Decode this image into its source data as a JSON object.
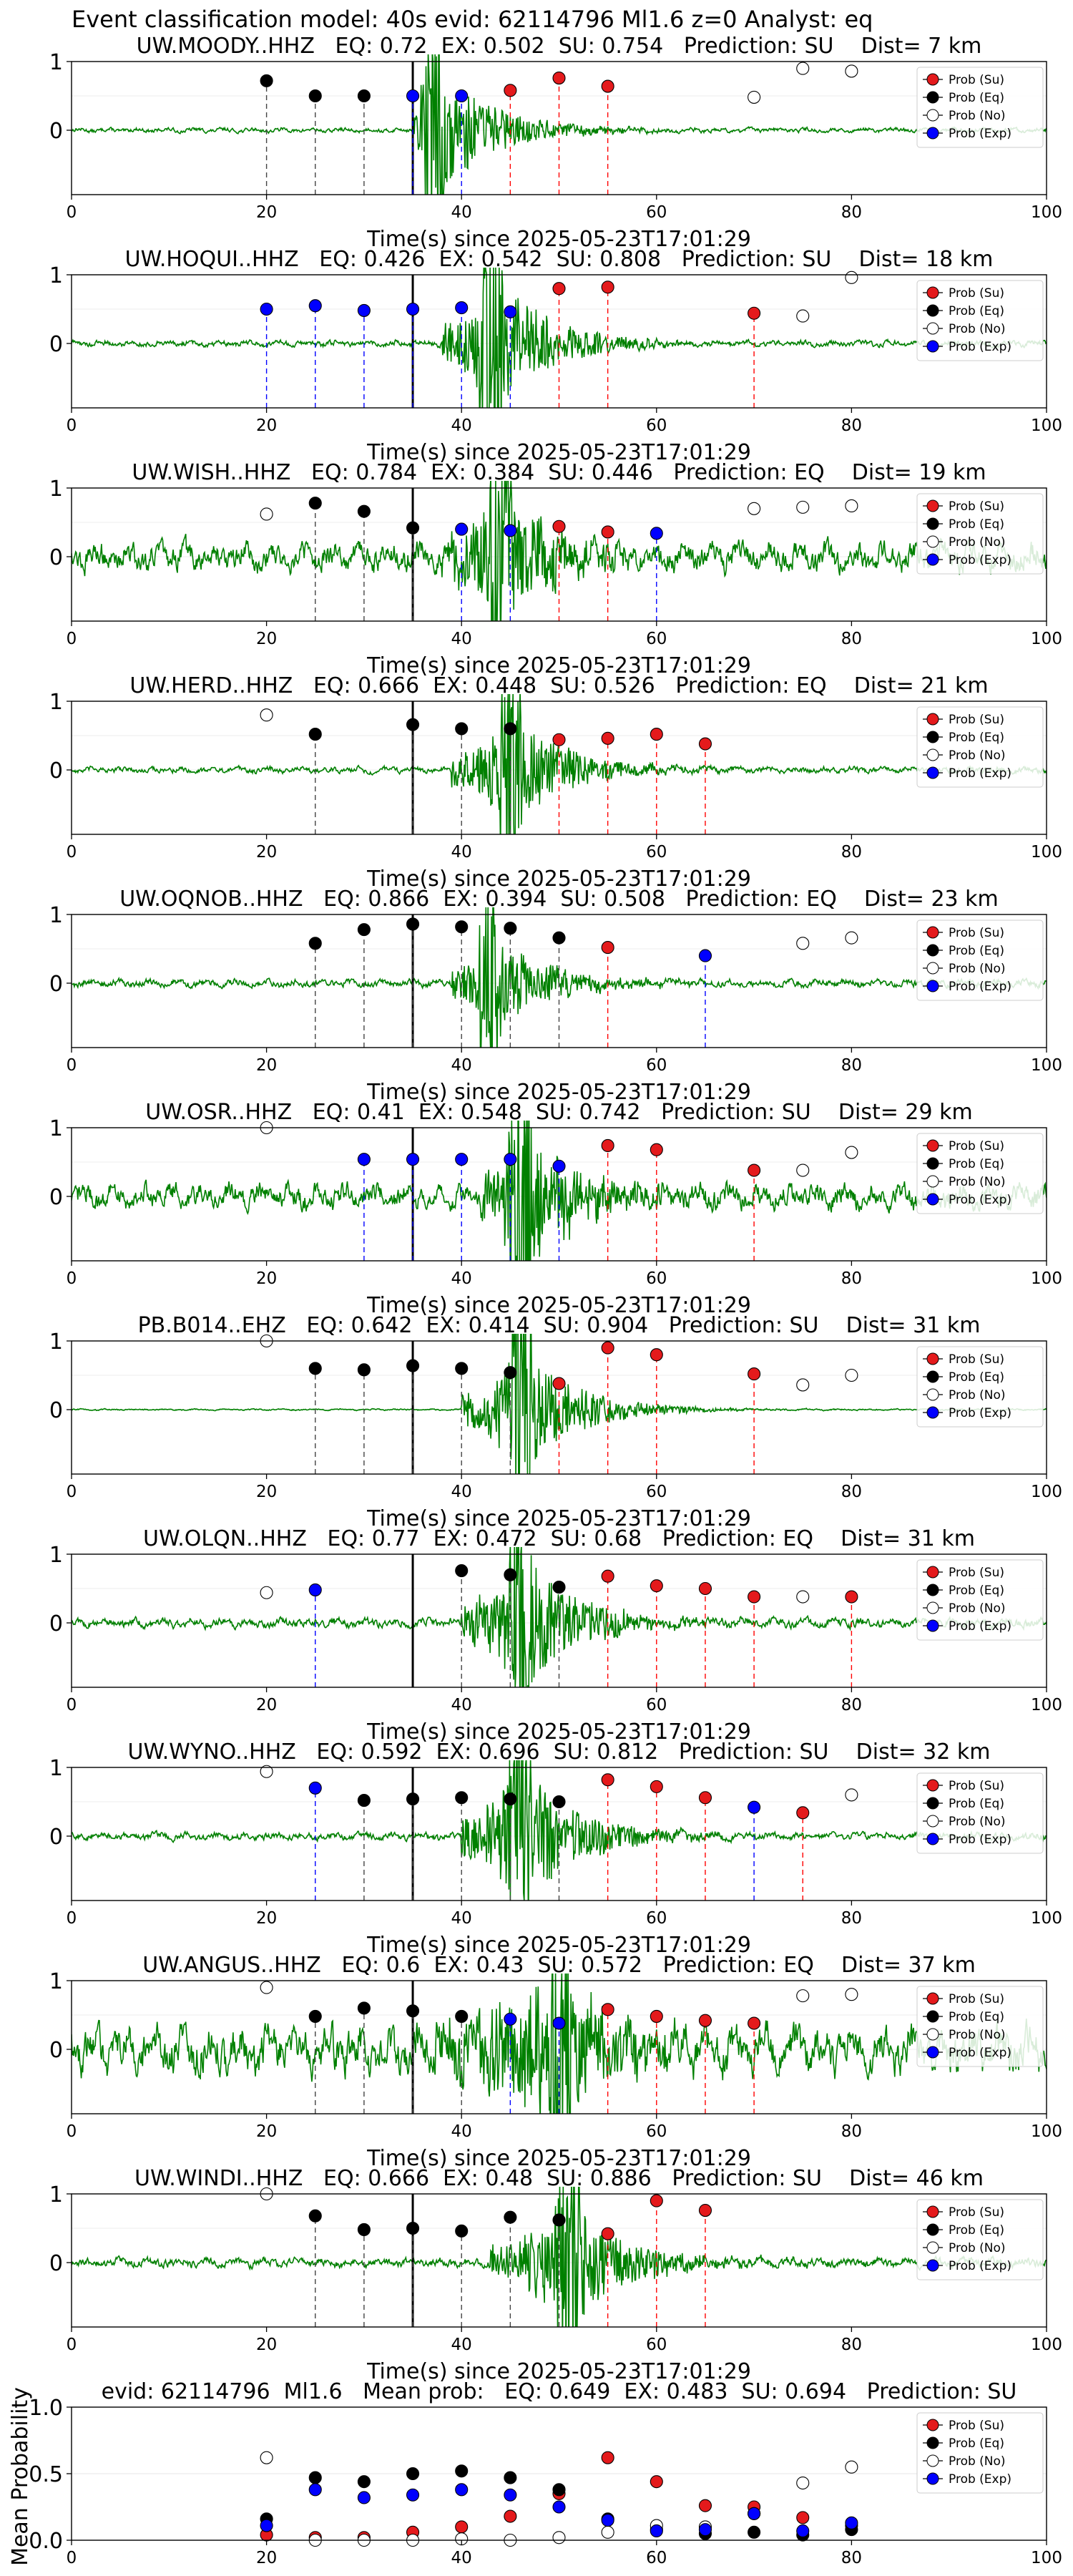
{
  "figure": {
    "suptitle": "Event classification model: 40s evid: 62114796 Ml1.6 z=0 Analyst: eq",
    "xlabel": "Time(s) since 2025-05-23T17:01:29",
    "mean_ylabel": "Mean Probability",
    "legend": [
      "Prob (Su)",
      "Prob (Eq)",
      "Prob (No)",
      "Prob (Exp)"
    ],
    "colors": {
      "su": "#e41a1c",
      "eq": "#000000",
      "no": "#ffffff",
      "exp": "#0000ff",
      "wave": "#008000",
      "su_line": "#ff0000",
      "exp_line": "#0000ff",
      "eq_line": "#444444"
    }
  },
  "chart_data": [
    {
      "type": "scatter",
      "title": "UW.MOODY..HHZ   EQ: 0.72  EX: 0.502  SU: 0.754   Prediction: SU    Dist= 7 km",
      "xlim": [
        0,
        100
      ],
      "xticks": [
        "0",
        "20",
        "40",
        "60",
        "80",
        "100"
      ],
      "yticks": [
        "1",
        "0"
      ],
      "p_arrival": 35,
      "wave_onset": 35,
      "wave_peak": 37,
      "wave_noise": 0.03,
      "wave_amp": 1.0,
      "points": [
        [
          20,
          0.72,
          "eq"
        ],
        [
          25,
          0.5,
          "eq"
        ],
        [
          30,
          0.5,
          "eq"
        ],
        [
          35,
          0.5,
          "exp"
        ],
        [
          40,
          0.5,
          "exp"
        ],
        [
          45,
          0.58,
          "su"
        ],
        [
          50,
          0.76,
          "su"
        ],
        [
          55,
          0.64,
          "su"
        ],
        [
          70,
          0.48,
          "no"
        ],
        [
          75,
          0.9,
          "no"
        ],
        [
          80,
          0.86,
          "no"
        ]
      ]
    },
    {
      "type": "scatter",
      "title": "UW.HOQUI..HHZ   EQ: 0.426  EX: 0.542  SU: 0.808   Prediction: SU    Dist= 18 km",
      "xlim": [
        0,
        100
      ],
      "xticks": [
        "0",
        "20",
        "40",
        "60",
        "80",
        "100"
      ],
      "yticks": [
        "1",
        "0"
      ],
      "p_arrival": 35,
      "wave_onset": 38,
      "wave_peak": 43,
      "wave_noise": 0.04,
      "wave_amp": 1.0,
      "points": [
        [
          20,
          0.5,
          "exp"
        ],
        [
          25,
          0.55,
          "exp"
        ],
        [
          30,
          0.48,
          "exp"
        ],
        [
          35,
          0.5,
          "exp"
        ],
        [
          40,
          0.52,
          "exp"
        ],
        [
          45,
          0.46,
          "exp"
        ],
        [
          50,
          0.8,
          "su"
        ],
        [
          55,
          0.82,
          "su"
        ],
        [
          70,
          0.44,
          "su"
        ],
        [
          75,
          0.4,
          "no"
        ],
        [
          80,
          0.96,
          "no"
        ]
      ]
    },
    {
      "type": "scatter",
      "title": "UW.WISH..HHZ   EQ: 0.784  EX: 0.384  SU: 0.446   Prediction: EQ    Dist= 19 km",
      "xlim": [
        0,
        100
      ],
      "xticks": [
        "0",
        "20",
        "40",
        "60",
        "80",
        "100"
      ],
      "yticks": [
        "1",
        "0"
      ],
      "p_arrival": 35,
      "wave_onset": 38,
      "wave_peak": 44,
      "wave_noise": 0.18,
      "wave_amp": 0.9,
      "points": [
        [
          20,
          0.62,
          "no"
        ],
        [
          25,
          0.78,
          "eq"
        ],
        [
          30,
          0.66,
          "eq"
        ],
        [
          35,
          0.42,
          "eq"
        ],
        [
          40,
          0.4,
          "exp"
        ],
        [
          45,
          0.38,
          "exp"
        ],
        [
          50,
          0.44,
          "su"
        ],
        [
          55,
          0.36,
          "su"
        ],
        [
          60,
          0.34,
          "exp"
        ],
        [
          70,
          0.7,
          "no"
        ],
        [
          75,
          0.72,
          "no"
        ],
        [
          80,
          0.74,
          "no"
        ]
      ]
    },
    {
      "type": "scatter",
      "title": "UW.HERD..HHZ   EQ: 0.666  EX: 0.448  SU: 0.526   Prediction: EQ    Dist= 21 km",
      "xlim": [
        0,
        100
      ],
      "xticks": [
        "0",
        "20",
        "40",
        "60",
        "80",
        "100"
      ],
      "yticks": [
        "1",
        "0"
      ],
      "p_arrival": 35,
      "wave_onset": 39,
      "wave_peak": 45,
      "wave_noise": 0.04,
      "wave_amp": 0.8,
      "points": [
        [
          20,
          0.8,
          "no"
        ],
        [
          25,
          0.52,
          "eq"
        ],
        [
          35,
          0.66,
          "eq"
        ],
        [
          40,
          0.6,
          "eq"
        ],
        [
          45,
          0.6,
          "eq"
        ],
        [
          50,
          0.44,
          "su"
        ],
        [
          55,
          0.46,
          "su"
        ],
        [
          60,
          0.52,
          "su"
        ],
        [
          65,
          0.38,
          "su"
        ]
      ]
    },
    {
      "type": "scatter",
      "title": "UW.OQNOB..HHZ   EQ: 0.866  EX: 0.394  SU: 0.508   Prediction: EQ    Dist= 23 km",
      "xlim": [
        0,
        100
      ],
      "xticks": [
        "0",
        "20",
        "40",
        "60",
        "80",
        "100"
      ],
      "yticks": [
        "1",
        "0"
      ],
      "p_arrival": 35,
      "wave_onset": 39,
      "wave_peak": 43,
      "wave_noise": 0.05,
      "wave_amp": 0.7,
      "points": [
        [
          25,
          0.58,
          "eq"
        ],
        [
          30,
          0.78,
          "eq"
        ],
        [
          35,
          0.86,
          "eq"
        ],
        [
          40,
          0.82,
          "eq"
        ],
        [
          45,
          0.8,
          "eq"
        ],
        [
          50,
          0.66,
          "eq"
        ],
        [
          55,
          0.52,
          "su"
        ],
        [
          65,
          0.4,
          "exp"
        ],
        [
          75,
          0.58,
          "no"
        ],
        [
          80,
          0.66,
          "no"
        ]
      ]
    },
    {
      "type": "scatter",
      "title": "UW.OSR..HHZ   EQ: 0.41  EX: 0.548  SU: 0.742   Prediction: SU    Dist= 29 km",
      "xlim": [
        0,
        100
      ],
      "xticks": [
        "0",
        "20",
        "40",
        "60",
        "80",
        "100"
      ],
      "yticks": [
        "1",
        "0"
      ],
      "p_arrival": 35,
      "wave_onset": 42,
      "wave_peak": 46,
      "wave_noise": 0.16,
      "wave_amp": 1.0,
      "points": [
        [
          20,
          1.0,
          "no"
        ],
        [
          30,
          0.54,
          "exp"
        ],
        [
          35,
          0.54,
          "exp"
        ],
        [
          40,
          0.54,
          "exp"
        ],
        [
          45,
          0.54,
          "exp"
        ],
        [
          50,
          0.44,
          "exp"
        ],
        [
          55,
          0.74,
          "su"
        ],
        [
          60,
          0.68,
          "su"
        ],
        [
          70,
          0.38,
          "su"
        ],
        [
          75,
          0.38,
          "no"
        ],
        [
          80,
          0.64,
          "no"
        ]
      ]
    },
    {
      "type": "scatter",
      "title": "PB.B014..EHZ   EQ: 0.642  EX: 0.414  SU: 0.904   Prediction: SU    Dist= 31 km",
      "xlim": [
        0,
        100
      ],
      "xticks": [
        "0",
        "20",
        "40",
        "60",
        "80",
        "100"
      ],
      "yticks": [
        "1",
        "0"
      ],
      "p_arrival": 35,
      "wave_onset": 40,
      "wave_peak": 46,
      "wave_noise": 0.01,
      "wave_amp": 0.9,
      "points": [
        [
          20,
          1.0,
          "no"
        ],
        [
          25,
          0.6,
          "eq"
        ],
        [
          30,
          0.58,
          "eq"
        ],
        [
          35,
          0.64,
          "eq"
        ],
        [
          40,
          0.6,
          "eq"
        ],
        [
          45,
          0.54,
          "eq"
        ],
        [
          50,
          0.38,
          "su"
        ],
        [
          55,
          0.9,
          "su"
        ],
        [
          60,
          0.8,
          "su"
        ],
        [
          70,
          0.52,
          "su"
        ],
        [
          75,
          0.36,
          "no"
        ],
        [
          80,
          0.5,
          "no"
        ]
      ]
    },
    {
      "type": "scatter",
      "title": "UW.OLQN..HHZ   EQ: 0.77  EX: 0.472  SU: 0.68   Prediction: EQ    Dist= 31 km",
      "xlim": [
        0,
        100
      ],
      "xticks": [
        "0",
        "20",
        "40",
        "60",
        "80",
        "100"
      ],
      "yticks": [
        "1",
        "0"
      ],
      "p_arrival": 35,
      "wave_onset": 40,
      "wave_peak": 46,
      "wave_noise": 0.06,
      "wave_amp": 1.0,
      "points": [
        [
          20,
          0.44,
          "no"
        ],
        [
          25,
          0.48,
          "exp"
        ],
        [
          40,
          0.76,
          "eq"
        ],
        [
          45,
          0.7,
          "eq"
        ],
        [
          50,
          0.52,
          "eq"
        ],
        [
          55,
          0.68,
          "su"
        ],
        [
          60,
          0.54,
          "su"
        ],
        [
          65,
          0.5,
          "su"
        ],
        [
          70,
          0.38,
          "su"
        ],
        [
          75,
          0.38,
          "no"
        ],
        [
          80,
          0.38,
          "su"
        ]
      ]
    },
    {
      "type": "scatter",
      "title": "UW.WYNO..HHZ   EQ: 0.592  EX: 0.696  SU: 0.812   Prediction: SU    Dist= 32 km",
      "xlim": [
        0,
        100
      ],
      "xticks": [
        "0",
        "20",
        "40",
        "60",
        "80",
        "100"
      ],
      "yticks": [
        "1",
        "0"
      ],
      "p_arrival": 35,
      "wave_onset": 40,
      "wave_peak": 46,
      "wave_noise": 0.05,
      "wave_amp": 1.0,
      "points": [
        [
          20,
          0.94,
          "no"
        ],
        [
          25,
          0.7,
          "exp"
        ],
        [
          30,
          0.52,
          "eq"
        ],
        [
          35,
          0.54,
          "eq"
        ],
        [
          40,
          0.56,
          "eq"
        ],
        [
          45,
          0.54,
          "eq"
        ],
        [
          50,
          0.5,
          "eq"
        ],
        [
          55,
          0.82,
          "su"
        ],
        [
          60,
          0.72,
          "su"
        ],
        [
          65,
          0.56,
          "su"
        ],
        [
          70,
          0.42,
          "exp"
        ],
        [
          75,
          0.34,
          "su"
        ],
        [
          80,
          0.6,
          "no"
        ]
      ]
    },
    {
      "type": "scatter",
      "title": "UW.ANGUS..HHZ   EQ: 0.6  EX: 0.43  SU: 0.572   Prediction: EQ    Dist= 37 km",
      "xlim": [
        0,
        100
      ],
      "xticks": [
        "0",
        "20",
        "40",
        "60",
        "80",
        "100"
      ],
      "yticks": [
        "1",
        "0"
      ],
      "p_arrival": 35,
      "wave_onset": 37,
      "wave_peak": 50,
      "wave_noise": 0.3,
      "wave_amp": 1.0,
      "points": [
        [
          20,
          0.9,
          "no"
        ],
        [
          25,
          0.48,
          "eq"
        ],
        [
          30,
          0.6,
          "eq"
        ],
        [
          35,
          0.56,
          "eq"
        ],
        [
          40,
          0.48,
          "eq"
        ],
        [
          45,
          0.44,
          "exp"
        ],
        [
          50,
          0.38,
          "exp"
        ],
        [
          55,
          0.58,
          "su"
        ],
        [
          60,
          0.48,
          "su"
        ],
        [
          65,
          0.42,
          "su"
        ],
        [
          70,
          0.38,
          "su"
        ],
        [
          75,
          0.78,
          "no"
        ],
        [
          80,
          0.8,
          "no"
        ]
      ]
    },
    {
      "type": "scatter",
      "title": "UW.WINDI..HHZ   EQ: 0.666  EX: 0.48  SU: 0.886   Prediction: SU    Dist= 46 km",
      "xlim": [
        0,
        100
      ],
      "xticks": [
        "0",
        "20",
        "40",
        "60",
        "80",
        "100"
      ],
      "yticks": [
        "1",
        "0"
      ],
      "p_arrival": 35,
      "wave_onset": 43,
      "wave_peak": 51,
      "wave_noise": 0.06,
      "wave_amp": 0.9,
      "points": [
        [
          20,
          1.0,
          "no"
        ],
        [
          25,
          0.68,
          "eq"
        ],
        [
          30,
          0.48,
          "eq"
        ],
        [
          35,
          0.5,
          "eq"
        ],
        [
          40,
          0.46,
          "eq"
        ],
        [
          45,
          0.66,
          "eq"
        ],
        [
          50,
          0.62,
          "eq"
        ],
        [
          55,
          0.42,
          "su"
        ],
        [
          60,
          0.9,
          "su"
        ],
        [
          65,
          0.76,
          "su"
        ]
      ]
    },
    {
      "type": "scatter",
      "title": "evid: 62114796  Ml1.6   Mean prob:   EQ: 0.649  EX: 0.483  SU: 0.694   Prediction: SU",
      "ylabel": "Mean Probability",
      "xlim": [
        0,
        100
      ],
      "ylim": [
        0,
        1
      ],
      "xticks": [
        "0",
        "20",
        "40",
        "60",
        "80",
        "100"
      ],
      "yticks": [
        "0.0",
        "0.5",
        "1.0"
      ],
      "points": [
        [
          20,
          0.04,
          "su"
        ],
        [
          20,
          0.16,
          "eq"
        ],
        [
          20,
          0.62,
          "no"
        ],
        [
          20,
          0.11,
          "exp"
        ],
        [
          25,
          0.02,
          "su"
        ],
        [
          25,
          0.47,
          "eq"
        ],
        [
          25,
          0.0,
          "no"
        ],
        [
          25,
          0.38,
          "exp"
        ],
        [
          30,
          0.02,
          "su"
        ],
        [
          30,
          0.44,
          "eq"
        ],
        [
          30,
          0.0,
          "no"
        ],
        [
          30,
          0.32,
          "exp"
        ],
        [
          35,
          0.06,
          "su"
        ],
        [
          35,
          0.5,
          "eq"
        ],
        [
          35,
          0.0,
          "no"
        ],
        [
          35,
          0.34,
          "exp"
        ],
        [
          40,
          0.1,
          "su"
        ],
        [
          40,
          0.52,
          "eq"
        ],
        [
          40,
          0.01,
          "no"
        ],
        [
          40,
          0.38,
          "exp"
        ],
        [
          45,
          0.18,
          "su"
        ],
        [
          45,
          0.47,
          "eq"
        ],
        [
          45,
          0.0,
          "no"
        ],
        [
          45,
          0.34,
          "exp"
        ],
        [
          50,
          0.35,
          "su"
        ],
        [
          50,
          0.38,
          "eq"
        ],
        [
          50,
          0.02,
          "no"
        ],
        [
          50,
          0.25,
          "exp"
        ],
        [
          55,
          0.62,
          "su"
        ],
        [
          55,
          0.16,
          "eq"
        ],
        [
          55,
          0.06,
          "no"
        ],
        [
          55,
          0.15,
          "exp"
        ],
        [
          60,
          0.44,
          "su"
        ],
        [
          60,
          0.08,
          "eq"
        ],
        [
          60,
          0.11,
          "no"
        ],
        [
          60,
          0.07,
          "exp"
        ],
        [
          65,
          0.26,
          "su"
        ],
        [
          65,
          0.05,
          "eq"
        ],
        [
          65,
          0.1,
          "no"
        ],
        [
          65,
          0.08,
          "exp"
        ],
        [
          70,
          0.25,
          "su"
        ],
        [
          70,
          0.06,
          "eq"
        ],
        [
          70,
          0.2,
          "no"
        ],
        [
          70,
          0.2,
          "exp"
        ],
        [
          75,
          0.17,
          "su"
        ],
        [
          75,
          0.04,
          "eq"
        ],
        [
          75,
          0.43,
          "no"
        ],
        [
          75,
          0.07,
          "exp"
        ],
        [
          80,
          0.11,
          "su"
        ],
        [
          80,
          0.08,
          "eq"
        ],
        [
          80,
          0.55,
          "no"
        ],
        [
          80,
          0.13,
          "exp"
        ]
      ]
    }
  ]
}
